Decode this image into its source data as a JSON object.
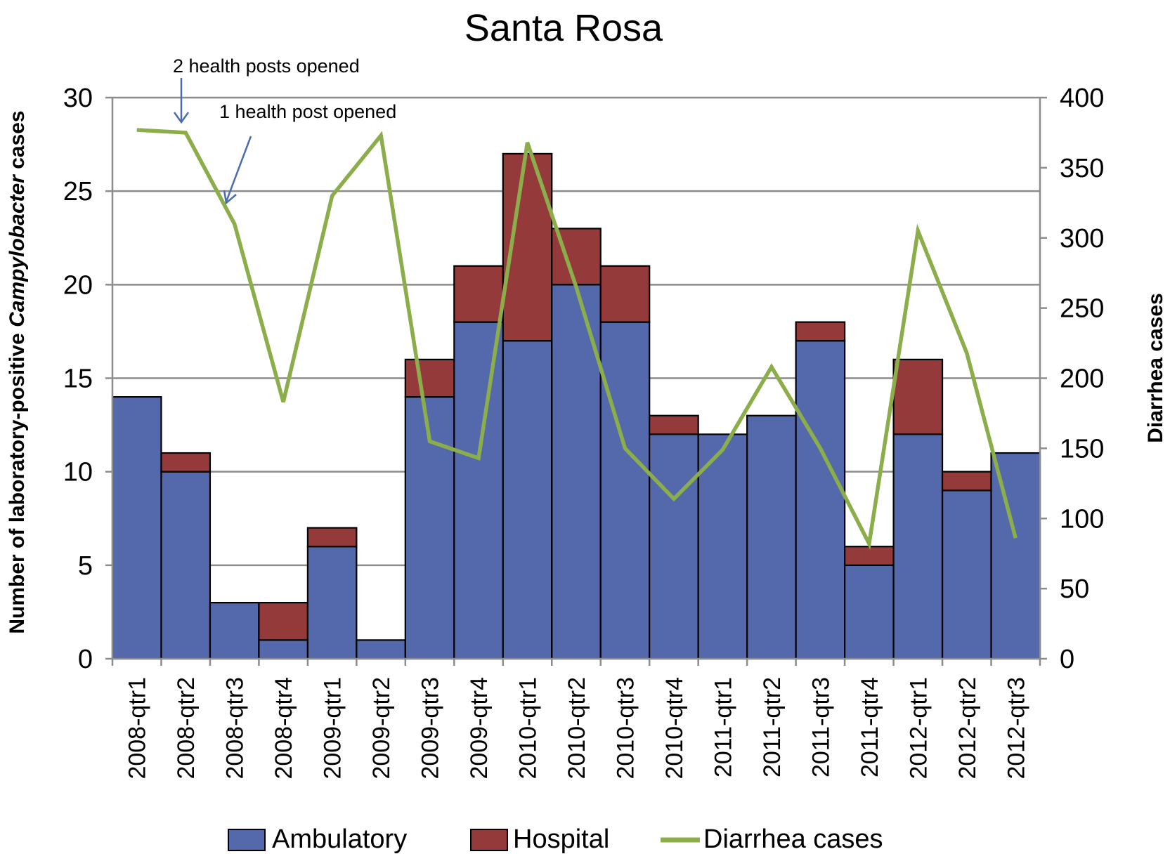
{
  "chart_data": {
    "type": "bar",
    "stacked": true,
    "title": "Santa Rosa",
    "ylabel_left_prefix": "Number of laboratory-positive ",
    "ylabel_left_italic": "Campylobacter",
    "ylabel_left_suffix": " cases",
    "ylabel_right": "Diarrhea cases",
    "ylim_left": [
      0,
      30
    ],
    "ylim_right": [
      0,
      400
    ],
    "yticks_left": [
      "0",
      "5",
      "10",
      "15",
      "20",
      "25",
      "30"
    ],
    "yticks_right": [
      "0",
      "50",
      "100",
      "150",
      "200",
      "250",
      "300",
      "350",
      "400"
    ],
    "grid": true,
    "legend_position": "bottom",
    "categories": [
      "2008-qtr1",
      "2008-qtr2",
      "2008-qtr3",
      "2008-qtr4",
      "2009-qtr1",
      "2009-qtr2",
      "2009-qtr3",
      "2009-qtr4",
      "2010-qtr1",
      "2010-qtr2",
      "2010-qtr3",
      "2010-qtr4",
      "2011-qtr1",
      "2011-qtr2",
      "2011-qtr3",
      "2011-qtr4",
      "2012-qtr1",
      "2012-qtr2",
      "2012-qtr3"
    ],
    "series": [
      {
        "name": "Ambulatory",
        "type": "bar",
        "axis": "left",
        "color": "#5469ab",
        "values": [
          14,
          10,
          3,
          1,
          6,
          1,
          14,
          18,
          17,
          20,
          18,
          12,
          12,
          13,
          17,
          5,
          12,
          9,
          11
        ]
      },
      {
        "name": "Hospital",
        "type": "bar",
        "axis": "left",
        "color": "#953a3a",
        "values": [
          0,
          1,
          0,
          2,
          1,
          0,
          2,
          3,
          10,
          3,
          3,
          1,
          0,
          0,
          1,
          1,
          4,
          1,
          0
        ]
      },
      {
        "name": "Diarrhea cases",
        "type": "line",
        "axis": "right",
        "color": "#8bad4a",
        "values": [
          377,
          375,
          310,
          183,
          330,
          373,
          155,
          143,
          368,
          265,
          150,
          114,
          149,
          208,
          150,
          82,
          305,
          218,
          86
        ]
      }
    ],
    "annotations": [
      {
        "text": "2 health posts opened",
        "category": "2008-qtr2"
      },
      {
        "text": "1 health post opened",
        "category": "2008-qtr3"
      }
    ]
  }
}
